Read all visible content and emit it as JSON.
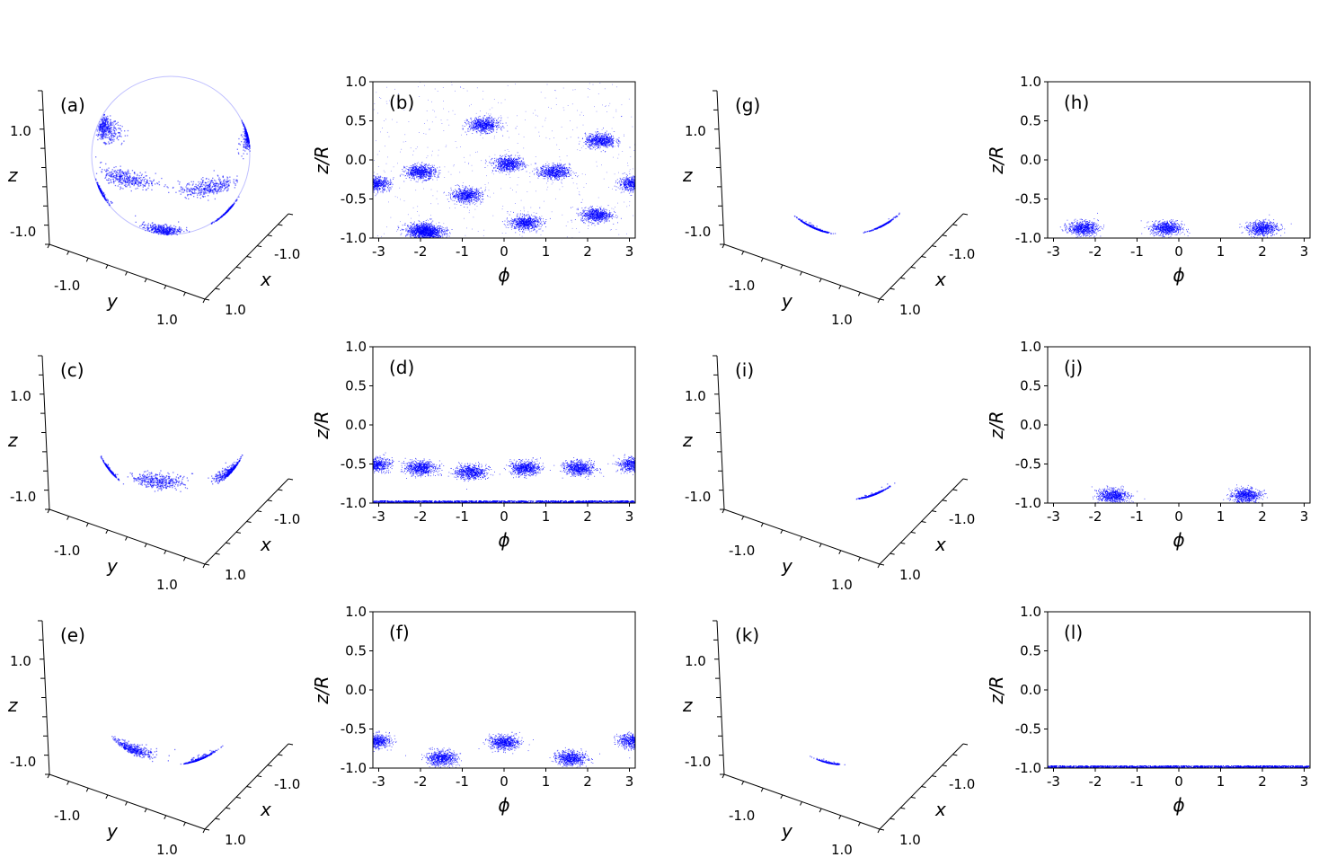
{
  "theme": {
    "point_color": "#0000ff",
    "axis_color": "#000000",
    "background": "#ffffff"
  },
  "axis_labels": {
    "x3d": "x",
    "y3d": "y",
    "z3d": "z",
    "phi": "ϕ",
    "zr": "z/R"
  },
  "tick_labels_3d": {
    "z_low": "-1.0",
    "z_high": "1.0",
    "y_low": "-1.0",
    "y_high": "1.0",
    "x_low": "-1.0",
    "x_high": "1.0"
  },
  "chart_data": [
    {
      "panel": "(a)",
      "type": "scatter3d",
      "xlabel": "x",
      "ylabel": "y",
      "zlabel": "z",
      "lim": [
        -1,
        1
      ],
      "clusters": [
        {
          "phi": -2.9,
          "z": -0.3
        },
        {
          "phi": -2.0,
          "z": -0.9
        },
        {
          "phi": -2.0,
          "z": -0.15
        },
        {
          "phi": -0.9,
          "z": -0.45
        },
        {
          "phi": 0.1,
          "z": -0.05
        },
        {
          "phi": 0.5,
          "z": -0.8
        },
        {
          "phi": 1.2,
          "z": -0.15
        },
        {
          "phi": 2.2,
          "z": -0.7
        },
        {
          "phi": 2.3,
          "z": 0.25
        },
        {
          "phi": -0.5,
          "z": 0.45
        }
      ]
    },
    {
      "panel": "(b)",
      "type": "scatter",
      "xlabel": "ϕ",
      "ylabel": "z/R",
      "xlim": [
        -3.14,
        3.14
      ],
      "ylim": [
        -1.0,
        1.0
      ],
      "xticks": [
        "-3",
        "-2",
        "-1",
        "0",
        "1",
        "2",
        "3"
      ],
      "yticks": [
        "1.0",
        "0.5",
        "0.0",
        "-0.5",
        "-1.0"
      ],
      "clusters": [
        {
          "phi": -3.1,
          "z": -0.3
        },
        {
          "phi": -2.0,
          "z": -0.9
        },
        {
          "phi": -1.8,
          "z": -0.92
        },
        {
          "phi": -2.0,
          "z": -0.15
        },
        {
          "phi": -0.9,
          "z": -0.45
        },
        {
          "phi": 0.1,
          "z": -0.05
        },
        {
          "phi": 0.5,
          "z": -0.8
        },
        {
          "phi": 1.2,
          "z": -0.15
        },
        {
          "phi": 2.2,
          "z": -0.7
        },
        {
          "phi": 2.3,
          "z": 0.25
        },
        {
          "phi": -0.5,
          "z": 0.45
        },
        {
          "phi": 3.1,
          "z": -0.3
        }
      ]
    },
    {
      "panel": "(c)",
      "type": "scatter3d",
      "xlabel": "x",
      "ylabel": "y",
      "zlabel": "z",
      "lim": [
        -1,
        1
      ],
      "clusters": [
        {
          "phi": -3.0,
          "z": -0.5
        },
        {
          "phi": -2.0,
          "z": -0.55
        },
        {
          "phi": -0.8,
          "z": -0.6
        },
        {
          "phi": 0.5,
          "z": -0.55
        },
        {
          "phi": 1.8,
          "z": -0.55
        },
        {
          "phi": 3.0,
          "z": -0.5
        }
      ]
    },
    {
      "panel": "(d)",
      "type": "scatter",
      "xlabel": "ϕ",
      "ylabel": "z/R",
      "xlim": [
        -3.14,
        3.14
      ],
      "ylim": [
        -1.0,
        1.0
      ],
      "xticks": [
        "-3",
        "-2",
        "-1",
        "0",
        "1",
        "2",
        "3"
      ],
      "yticks": [
        "1.0",
        "0.5",
        "0.0",
        "-0.5",
        "-1.0"
      ],
      "clusters": [
        {
          "phi": -3.1,
          "z": -0.5
        },
        {
          "phi": -2.0,
          "z": -0.55
        },
        {
          "phi": -0.8,
          "z": -0.6
        },
        {
          "phi": 0.5,
          "z": -0.55
        },
        {
          "phi": 1.8,
          "z": -0.55
        },
        {
          "phi": 3.1,
          "z": -0.5
        }
      ],
      "band_z": -0.98
    },
    {
      "panel": "(e)",
      "type": "scatter3d",
      "xlabel": "x",
      "ylabel": "y",
      "zlabel": "z",
      "lim": [
        -1,
        1
      ],
      "clusters": [
        {
          "phi": -3.1,
          "z": -0.65
        },
        {
          "phi": -1.5,
          "z": -0.87
        },
        {
          "phi": 0.0,
          "z": -0.67
        },
        {
          "phi": 1.6,
          "z": -0.87
        }
      ]
    },
    {
      "panel": "(f)",
      "type": "scatter",
      "xlabel": "ϕ",
      "ylabel": "z/R",
      "xlim": [
        -3.14,
        3.14
      ],
      "ylim": [
        -1.0,
        1.0
      ],
      "xticks": [
        "-3",
        "-2",
        "-1",
        "0",
        "1",
        "2",
        "3"
      ],
      "yticks": [
        "1.0",
        "0.5",
        "0.0",
        "-0.5",
        "-1.0"
      ],
      "clusters": [
        {
          "phi": -3.1,
          "z": -0.65
        },
        {
          "phi": -1.5,
          "z": -0.87
        },
        {
          "phi": 0.0,
          "z": -0.67
        },
        {
          "phi": 1.6,
          "z": -0.87
        },
        {
          "phi": 3.1,
          "z": -0.65
        }
      ]
    },
    {
      "panel": "(g)",
      "type": "scatter3d",
      "xlabel": "x",
      "ylabel": "y",
      "zlabel": "z",
      "lim": [
        -1,
        1
      ],
      "clusters": [
        {
          "phi": -2.3,
          "z": -0.87
        },
        {
          "phi": -0.3,
          "z": -0.87
        },
        {
          "phi": 2.0,
          "z": -0.87
        }
      ]
    },
    {
      "panel": "(h)",
      "type": "scatter",
      "xlabel": "ϕ",
      "ylabel": "z/R",
      "xlim": [
        -3.14,
        3.14
      ],
      "ylim": [
        -1.0,
        1.0
      ],
      "xticks": [
        "-3",
        "-2",
        "-1",
        "0",
        "1",
        "2",
        "3"
      ],
      "yticks": [
        "1.0",
        "0.5",
        "0.0",
        "-0.5",
        "-1.0"
      ],
      "clusters": [
        {
          "phi": -2.3,
          "z": -0.87
        },
        {
          "phi": -0.3,
          "z": -0.87
        },
        {
          "phi": 2.0,
          "z": -0.87
        }
      ]
    },
    {
      "panel": "(i)",
      "type": "scatter3d",
      "xlabel": "x",
      "ylabel": "y",
      "zlabel": "z",
      "lim": [
        -1,
        1
      ],
      "clusters": [
        {
          "phi": -1.6,
          "z": -0.9
        },
        {
          "phi": 1.6,
          "z": -0.9
        }
      ]
    },
    {
      "panel": "(j)",
      "type": "scatter",
      "xlabel": "ϕ",
      "ylabel": "z/R",
      "xlim": [
        -3.14,
        3.14
      ],
      "ylim": [
        -1.0,
        1.0
      ],
      "xticks": [
        "-3",
        "-2",
        "-1",
        "0",
        "1",
        "2",
        "3"
      ],
      "yticks": [
        "1.0",
        "0.5",
        "0.0",
        "-0.5",
        "-1.0"
      ],
      "clusters": [
        {
          "phi": -1.6,
          "z": -0.9
        },
        {
          "phi": 1.6,
          "z": -0.9
        }
      ]
    },
    {
      "panel": "(k)",
      "type": "scatter3d",
      "xlabel": "x",
      "ylabel": "y",
      "zlabel": "z",
      "lim": [
        -1,
        1
      ],
      "clusters": [
        {
          "phi": 0.0,
          "z": -0.98
        }
      ]
    },
    {
      "panel": "(l)",
      "type": "scatter",
      "xlabel": "ϕ",
      "ylabel": "z/R",
      "xlim": [
        -3.14,
        3.14
      ],
      "ylim": [
        -1.0,
        1.0
      ],
      "xticks": [
        "-3",
        "-2",
        "-1",
        "0",
        "1",
        "2",
        "3"
      ],
      "yticks": [
        "1.0",
        "0.5",
        "0.0",
        "-0.5",
        "-1.0"
      ],
      "clusters": [],
      "band_z": -0.98
    }
  ]
}
